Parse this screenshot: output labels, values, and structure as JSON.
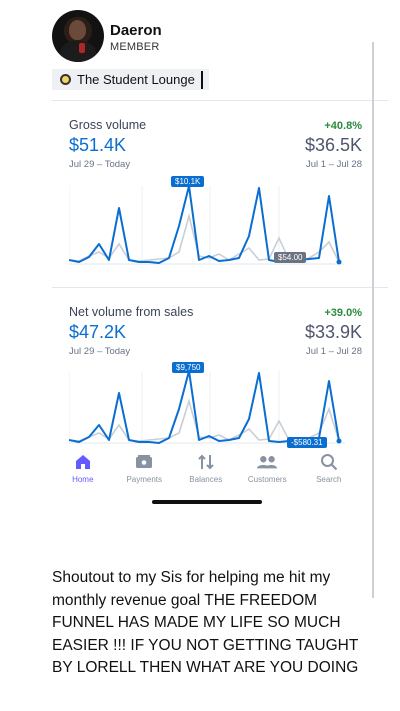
{
  "profile": {
    "name": "Daeron",
    "role": "MEMBER"
  },
  "community": {
    "label": "The Student Lounge"
  },
  "gross": {
    "title": "Gross volume",
    "growth": "+40.8%",
    "current_value": "$51.4K",
    "previous_value": "$36.5K",
    "current_range": "Jul 29 – Today",
    "previous_range": "Jul 1 – Jul 28",
    "peak_label": "$10.1K",
    "end_label": "$54.00"
  },
  "net": {
    "title": "Net volume from sales",
    "growth": "+39.0%",
    "current_value": "$47.2K",
    "previous_value": "$33.9K",
    "current_range": "Jul 29 – Today",
    "previous_range": "Jul 1 – Jul 28",
    "peak_label": "$9,750",
    "end_label": "-$580.31"
  },
  "tabs": [
    {
      "label": "Home",
      "icon": "home-icon"
    },
    {
      "label": "Payments",
      "icon": "payments-icon"
    },
    {
      "label": "Balances",
      "icon": "balances-icon"
    },
    {
      "label": "Customers",
      "icon": "customers-icon"
    },
    {
      "label": "Search",
      "icon": "search-icon"
    }
  ],
  "caption": "Shoutout to my Sis for helping me hit my monthly revenue goal THE FREEDOM FUNNEL HAS MADE MY LIFE SO MUCH EASIER !!! IF YOU NOT GETTING TAUGHT BY LORELL THEN WHAT ARE YOU DOING",
  "colors": {
    "accent": "#0a6ed1",
    "growth": "#2a8a3e",
    "tab_active": "#635bff",
    "previous_line": "#c9ced6"
  }
}
